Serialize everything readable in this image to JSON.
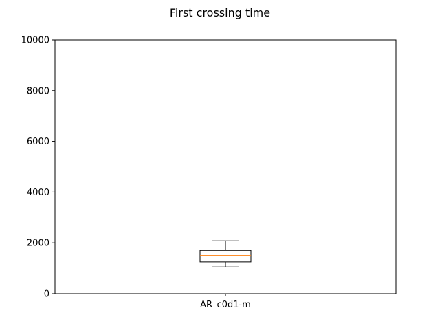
{
  "chart_data": {
    "type": "box",
    "title": "First crossing time",
    "xlabel": "",
    "ylabel": "",
    "categories": [
      "AR_c0d1-m"
    ],
    "boxes": [
      {
        "label": "AR_c0d1-m",
        "whisker_low": 1050,
        "q1": 1250,
        "median": 1500,
        "q3": 1700,
        "whisker_high": 2080
      }
    ],
    "ylim": [
      0,
      10000
    ],
    "yticks": [
      0,
      2000,
      4000,
      6000,
      8000,
      10000
    ],
    "grid": false,
    "colors": {
      "box": "#000000",
      "median": "#ff7f0e"
    }
  }
}
